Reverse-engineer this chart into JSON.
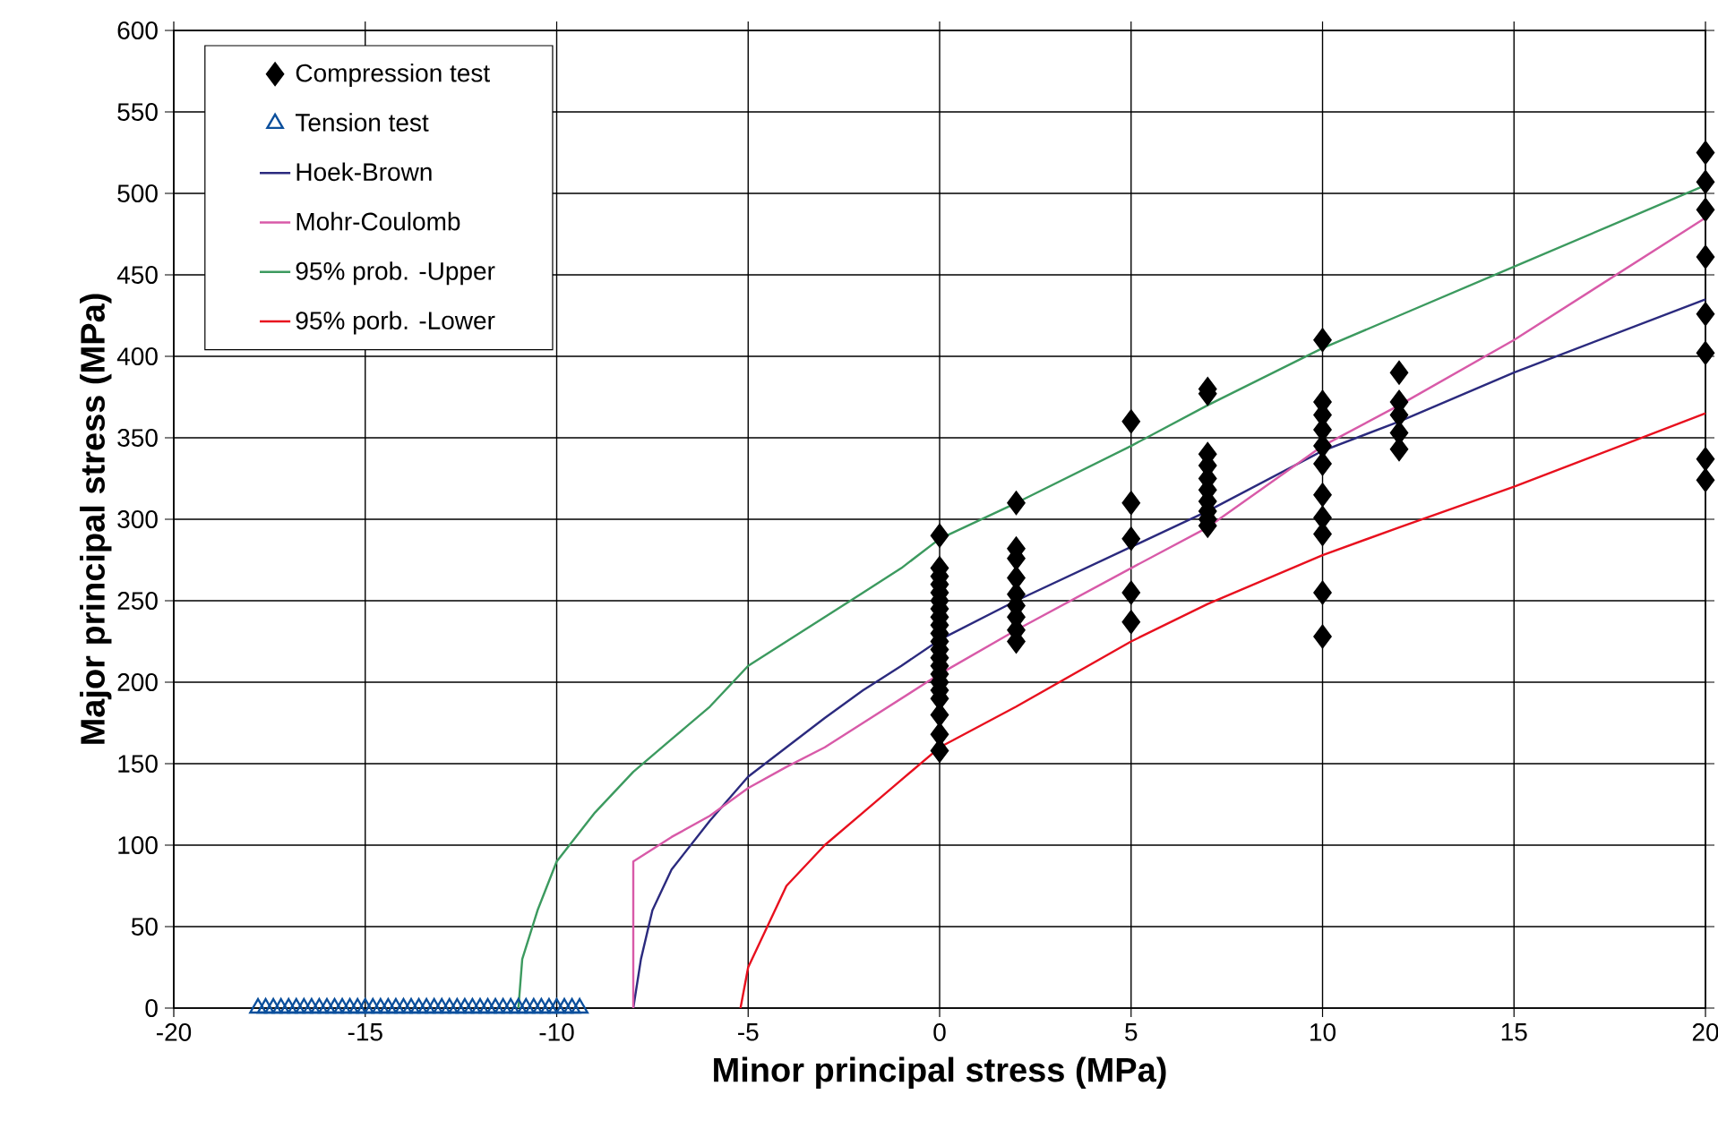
{
  "chart_data": {
    "type": "scatter",
    "xlabel": "Minor principal stress (MPa)",
    "ylabel": "Major principal stress (MPa)",
    "xlim": [
      -20,
      20
    ],
    "ylim": [
      0,
      600
    ],
    "xticks": [
      -20,
      -15,
      -10,
      -5,
      0,
      5,
      10,
      15,
      20
    ],
    "yticks": [
      0,
      50,
      100,
      150,
      200,
      250,
      300,
      350,
      400,
      450,
      500,
      550,
      600
    ],
    "grid": true,
    "legend": "top left",
    "series": [
      {
        "name": "Compression test",
        "marker": "diamond",
        "color": "#000000",
        "x": [
          0,
          0,
          0,
          0,
          0,
          0,
          0,
          0,
          0,
          0,
          0,
          0,
          0,
          0,
          0,
          0,
          0,
          0,
          0,
          0,
          0,
          2,
          2,
          2,
          2,
          2,
          2,
          2,
          2,
          2,
          5,
          5,
          5,
          5,
          5,
          7,
          7,
          7,
          7,
          7,
          7,
          7,
          7,
          7,
          7,
          10,
          10,
          10,
          10,
          10,
          10,
          10,
          10,
          10,
          10,
          10,
          12,
          12,
          12,
          12,
          12,
          20,
          20,
          20,
          20,
          20,
          20,
          20,
          20
        ],
        "values": [
          290,
          270,
          265,
          260,
          255,
          250,
          245,
          240,
          235,
          230,
          225,
          220,
          215,
          210,
          205,
          200,
          195,
          190,
          180,
          168,
          158,
          310,
          282,
          276,
          264,
          254,
          247,
          240,
          232,
          225,
          360,
          310,
          288,
          255,
          237,
          380,
          377,
          340,
          333,
          325,
          318,
          311,
          305,
          300,
          296,
          410,
          372,
          364,
          355,
          345,
          334,
          315,
          301,
          291,
          255,
          228,
          390,
          372,
          364,
          353,
          343,
          525,
          507,
          490,
          461,
          426,
          402,
          337,
          324
        ]
      },
      {
        "name": "Tension test",
        "marker": "triangle",
        "color": "#0b4f9c",
        "x": [
          -17.8,
          -17.6,
          -17.4,
          -17.2,
          -17.0,
          -16.8,
          -16.6,
          -16.4,
          -16.2,
          -16.0,
          -15.8,
          -15.6,
          -15.4,
          -15.2,
          -15.0,
          -14.8,
          -14.6,
          -14.4,
          -14.2,
          -14.0,
          -13.8,
          -13.6,
          -13.4,
          -13.2,
          -13.0,
          -12.8,
          -12.6,
          -12.4,
          -12.2,
          -12.0,
          -11.8,
          -11.6,
          -11.4,
          -11.2,
          -11.0,
          -10.8,
          -10.6,
          -10.4,
          -10.2,
          -10.0,
          -9.8,
          -9.6,
          -9.4
        ],
        "values": [
          0,
          0,
          0,
          0,
          0,
          0,
          0,
          0,
          0,
          0,
          0,
          0,
          0,
          0,
          0,
          0,
          0,
          0,
          0,
          0,
          0,
          0,
          0,
          0,
          0,
          0,
          0,
          0,
          0,
          0,
          0,
          0,
          0,
          0,
          0,
          0,
          0,
          0,
          0,
          0,
          0,
          0,
          0
        ]
      },
      {
        "name": "Hoek-Brown",
        "type": "line",
        "marker": "none",
        "color": "#2b2a7e",
        "x": [
          -8,
          -7.8,
          -7.5,
          -7,
          -6,
          -5,
          -4,
          -3,
          -2,
          -1,
          0,
          2,
          5,
          7,
          10,
          12,
          15,
          20
        ],
        "values": [
          0,
          30,
          60,
          85,
          115,
          142,
          160,
          178,
          195,
          210,
          226,
          250,
          283,
          305,
          342,
          360,
          390,
          435
        ]
      },
      {
        "name": "Mohr-Coulomb",
        "type": "line",
        "marker": "none",
        "color": "#d85aa8",
        "x": [
          -8,
          -8,
          -7,
          -6,
          -5,
          -4,
          -3,
          -2,
          -1,
          0,
          2,
          5,
          7,
          10,
          12,
          15,
          20
        ],
        "values": [
          0,
          90,
          105,
          118,
          135,
          148,
          160,
          175,
          190,
          205,
          232,
          270,
          295,
          345,
          370,
          410,
          485
        ]
      },
      {
        "name": "95% prob. -Upper",
        "type": "line",
        "marker": "none",
        "color": "#3c9a5f",
        "x": [
          -11,
          -10.9,
          -10.5,
          -10,
          -9,
          -8,
          -7,
          -6,
          -5,
          -4,
          -3,
          -2,
          -1,
          0,
          2,
          5,
          7,
          10,
          12,
          15,
          20
        ],
        "values": [
          0,
          30,
          60,
          90,
          120,
          145,
          165,
          185,
          210,
          225,
          240,
          255,
          270,
          288,
          310,
          345,
          370,
          405,
          425,
          455,
          505
        ]
      },
      {
        "name": "95% porb. -Lower",
        "type": "line",
        "marker": "none",
        "color": "#e8101e",
        "x": [
          -5.2,
          -5,
          -4.5,
          -4,
          -3,
          -2,
          -1,
          0,
          2,
          5,
          7,
          10,
          12,
          15,
          20
        ],
        "values": [
          0,
          25,
          50,
          75,
          100,
          120,
          140,
          160,
          185,
          225,
          248,
          278,
          295,
          320,
          365
        ]
      }
    ]
  }
}
